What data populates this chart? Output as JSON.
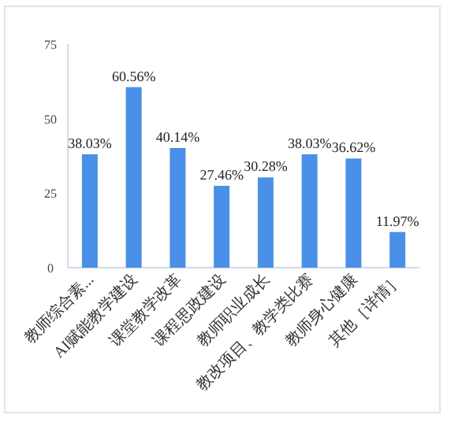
{
  "chart_data": {
    "type": "bar",
    "categories": [
      "教师综合素...",
      "AI赋能教学建设",
      "课堂教学改革",
      "课程思政建设",
      "教师职业成长",
      "教改项目、教学类比赛",
      "教师身心健康",
      "其他［详情］"
    ],
    "values": [
      38.03,
      60.56,
      40.14,
      27.46,
      30.28,
      38.03,
      36.62,
      11.97
    ],
    "value_labels": [
      "38.03%",
      "60.56%",
      "40.14%",
      "27.46%",
      "30.28%",
      "38.03%",
      "36.62%",
      "11.97%"
    ],
    "color": "#4a90e8",
    "ylim": [
      0,
      75
    ],
    "yticks": [
      0,
      25,
      50,
      75
    ],
    "grid": false
  }
}
